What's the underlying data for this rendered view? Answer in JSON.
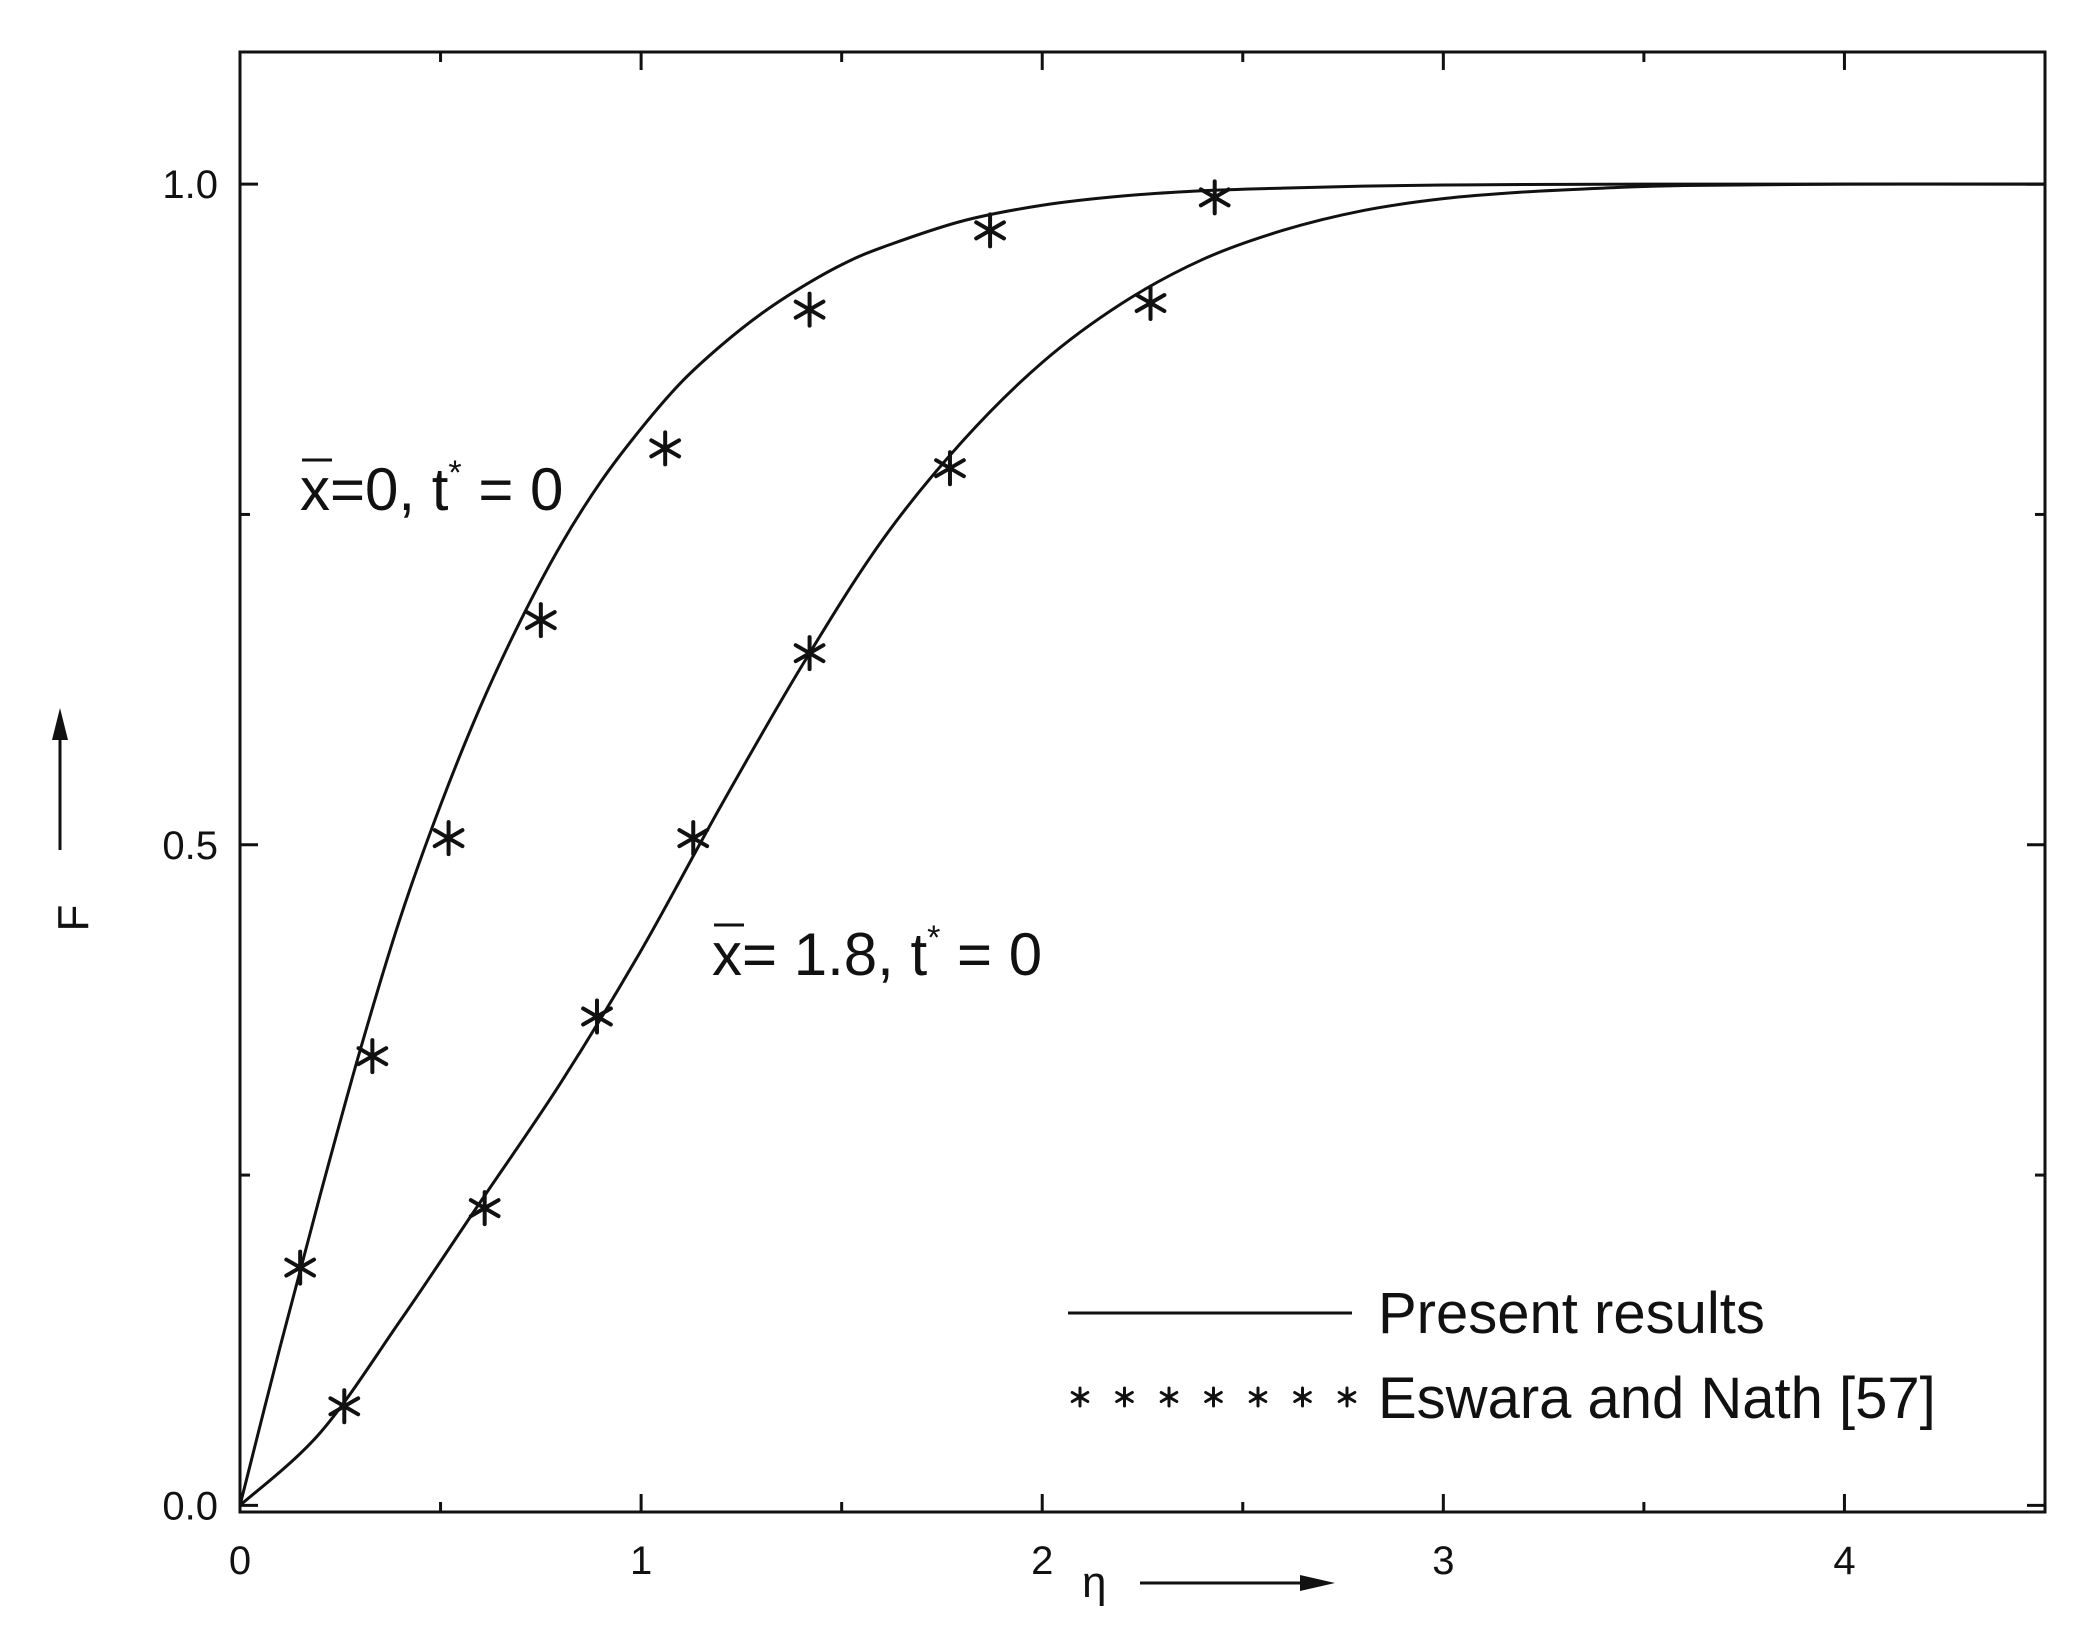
{
  "chart_data": {
    "type": "line",
    "xlabel": "η",
    "ylabel": "F",
    "xlim": [
      0,
      4.5
    ],
    "ylim": [
      -0.005,
      1.1
    ],
    "x_ticks": [
      0,
      1,
      2,
      3,
      4
    ],
    "x_tick_labels": [
      "0",
      "1",
      "2",
      "3",
      "4"
    ],
    "y_ticks": [
      0.0,
      0.5,
      1.0
    ],
    "y_tick_labels": [
      "0.0",
      "0.5",
      "1.0"
    ],
    "grid": false,
    "legend": {
      "position": "bottom-right",
      "entries": [
        {
          "label": "Present results",
          "style": "line"
        },
        {
          "label": "Eswara and Nath [57]",
          "style": "markers"
        }
      ]
    },
    "annotations": [
      {
        "series": 0,
        "text": "=0, t = 0",
        "var": "x",
        "sup": "*"
      },
      {
        "series": 1,
        "text": "= 1.8, t = 0",
        "var": "x",
        "sup": "*"
      }
    ],
    "series": [
      {
        "curve": {
          "x": [
            0,
            0.1,
            0.2,
            0.3,
            0.4,
            0.5,
            0.6,
            0.7,
            0.8,
            0.9,
            1.0,
            1.1,
            1.2,
            1.3,
            1.4,
            1.5,
            1.6,
            1.8,
            2.0,
            2.2,
            2.4,
            2.6,
            2.8,
            3.0,
            3.2,
            3.5,
            4.0,
            4.5
          ],
          "y": [
            0,
            0.12,
            0.235,
            0.345,
            0.445,
            0.53,
            0.605,
            0.67,
            0.727,
            0.775,
            0.815,
            0.85,
            0.878,
            0.902,
            0.922,
            0.939,
            0.952,
            0.972,
            0.984,
            0.991,
            0.995,
            0.997,
            0.9985,
            0.9993,
            0.9997,
            1.0,
            1.0,
            1.0
          ]
        },
        "markers": {
          "x": [
            0.15,
            0.33,
            0.52,
            0.75,
            1.06,
            1.42,
            1.87,
            2.43
          ],
          "y": [
            0.18,
            0.34,
            0.505,
            0.67,
            0.8,
            0.905,
            0.965,
            0.99
          ]
        }
      },
      {
        "curve": {
          "x": [
            0,
            0.2,
            0.4,
            0.6,
            0.8,
            1.0,
            1.2,
            1.4,
            1.6,
            1.8,
            2.0,
            2.2,
            2.4,
            2.6,
            2.8,
            3.0,
            3.2,
            3.4,
            3.6,
            4.0,
            4.5
          ],
          "y": [
            0,
            0.055,
            0.14,
            0.23,
            0.32,
            0.42,
            0.53,
            0.635,
            0.73,
            0.805,
            0.865,
            0.91,
            0.943,
            0.965,
            0.98,
            0.989,
            0.994,
            0.997,
            0.999,
            1.0,
            1.0
          ]
        },
        "markers": {
          "x": [
            0.26,
            0.61,
            0.89,
            1.13,
            1.42,
            1.77,
            2.27
          ],
          "y": [
            0.075,
            0.225,
            0.37,
            0.505,
            0.645,
            0.785,
            0.91
          ]
        }
      }
    ]
  }
}
